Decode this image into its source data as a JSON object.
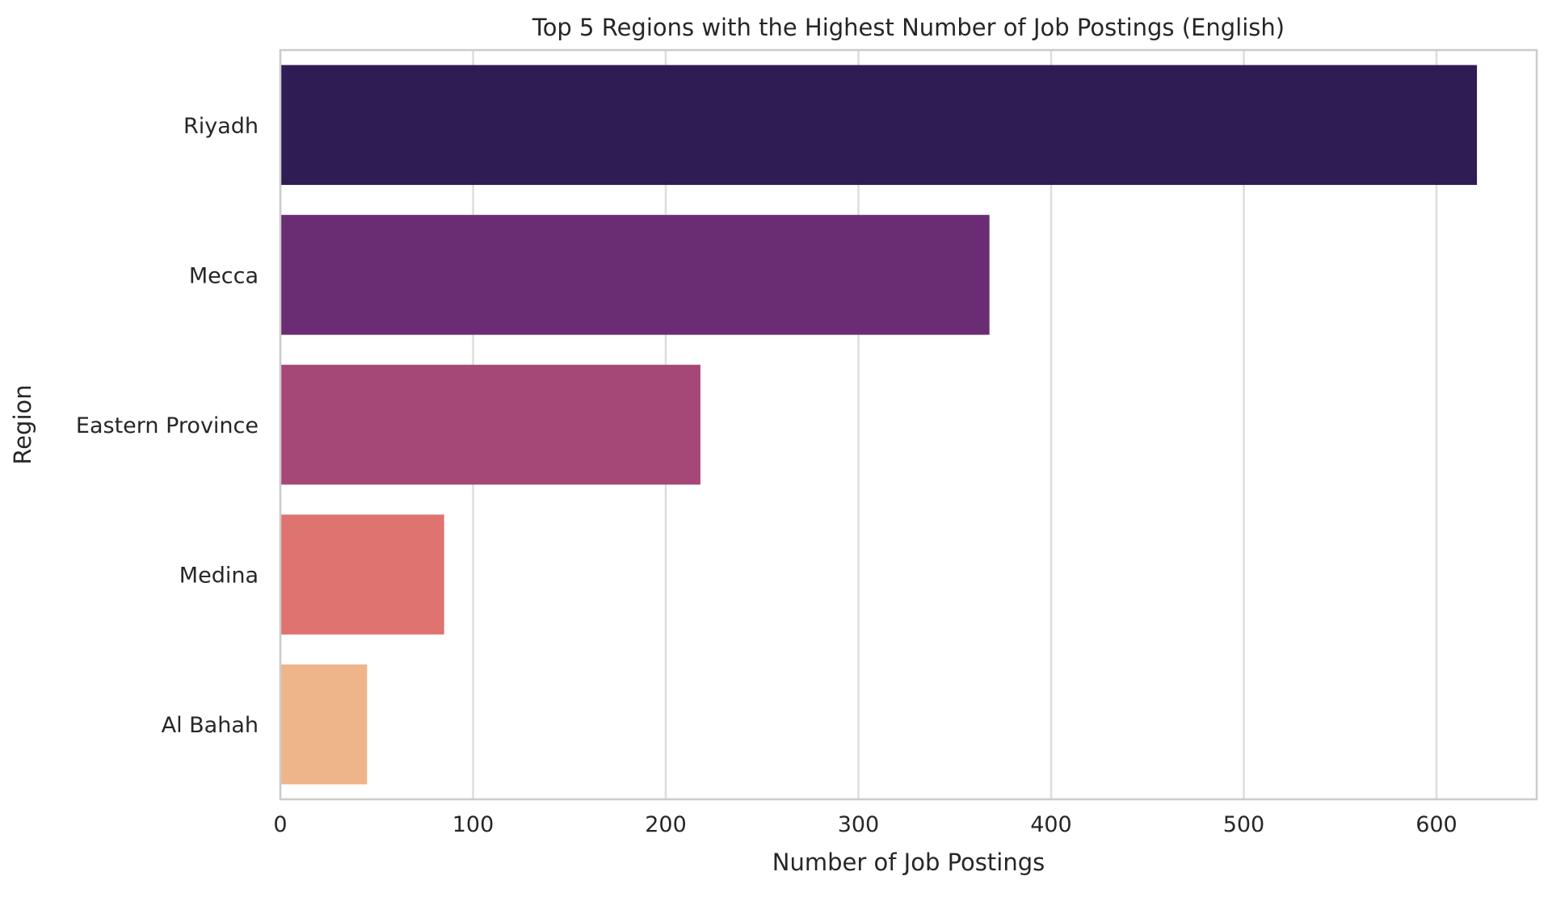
{
  "chart_data": {
    "type": "bar",
    "orientation": "horizontal",
    "title": "Top 5 Regions with the Highest Number of Job Postings (English)",
    "xlabel": "Number of Job Postings",
    "ylabel": "Region",
    "categories": [
      "Riyadh",
      "Mecca",
      "Eastern Province",
      "Medina",
      "Al Bahah"
    ],
    "values": [
      621,
      368,
      218,
      85,
      45
    ],
    "xlim": [
      0,
      652
    ],
    "xticks": [
      0,
      100,
      200,
      300,
      400,
      500,
      600
    ],
    "grid": true,
    "colors": [
      "#2f1c55",
      "#6a2c73",
      "#a64877",
      "#de736f",
      "#eeb48a"
    ]
  }
}
